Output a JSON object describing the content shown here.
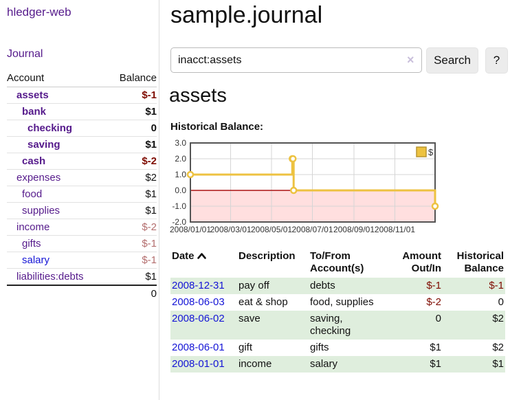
{
  "app": {
    "title": "hledger-web"
  },
  "sidebar": {
    "journal_label": "Journal",
    "accounts_header": {
      "account": "Account",
      "balance": "Balance"
    },
    "accounts": [
      {
        "name": "assets",
        "depth": 1,
        "balance": "$-1",
        "bold": true,
        "balance_style": "neg-strong"
      },
      {
        "name": "bank",
        "depth": 2,
        "balance": "$1",
        "bold": true,
        "balance_style": "pos"
      },
      {
        "name": "checking",
        "depth": 3,
        "balance": "0",
        "bold": true,
        "balance_style": "pos"
      },
      {
        "name": "saving",
        "depth": 3,
        "balance": "$1",
        "bold": true,
        "balance_style": "pos"
      },
      {
        "name": "cash",
        "depth": 2,
        "balance": "$-2",
        "bold": true,
        "balance_style": "neg-strong"
      },
      {
        "name": "expenses",
        "depth": 1,
        "balance": "$2",
        "bold": false,
        "balance_style": "pos"
      },
      {
        "name": "food",
        "depth": 2,
        "balance": "$1",
        "bold": false,
        "balance_style": "pos"
      },
      {
        "name": "supplies",
        "depth": 2,
        "balance": "$1",
        "bold": false,
        "balance_style": "pos"
      },
      {
        "name": "income",
        "depth": 1,
        "balance": "$-2",
        "bold": false,
        "balance_style": "neg-soft"
      },
      {
        "name": "gifts",
        "depth": 2,
        "balance": "$-1",
        "bold": false,
        "balance_style": "neg-soft"
      },
      {
        "name": "salary",
        "depth": 2,
        "balance": "$-1",
        "bold": false,
        "balance_style": "neg-soft",
        "link_style": "unvisited"
      },
      {
        "name": "liabilities:debts",
        "depth": 1,
        "balance": "$1",
        "bold": false,
        "balance_style": "pos"
      }
    ],
    "total": "0"
  },
  "header": {
    "title": "sample.journal"
  },
  "search": {
    "query": "inacct:assets",
    "clear_icon": "×",
    "button_label": "Search",
    "help_label": "?"
  },
  "account_page": {
    "heading": "assets",
    "chart_label": "Historical Balance:"
  },
  "chart_data": {
    "type": "line",
    "step": true,
    "title": "Historical Balance:",
    "series": [
      {
        "name": "$",
        "color": "#edc240",
        "points": [
          [
            "2008-01-01",
            1
          ],
          [
            "2008-06-01",
            2
          ],
          [
            "2008-06-02",
            2
          ],
          [
            "2008-06-03",
            0
          ],
          [
            "2008-12-31",
            -1
          ]
        ]
      }
    ],
    "xlim": [
      "2008-01-01",
      "2008-12-31"
    ],
    "ylim": [
      -2,
      3
    ],
    "x_tick_dates": [
      "2008-01-01",
      "2008-03-01",
      "2008-05-01",
      "2008-07-01",
      "2008-09-01",
      "2008-11-01"
    ],
    "x_tick_labels": [
      "2008/01/01",
      "2008/03/01",
      "2008/05/01",
      "2008/07/01",
      "2008/09/01",
      "2008/11/01"
    ],
    "y_ticks": [
      3,
      2,
      1,
      0,
      -1,
      -2
    ],
    "y_tick_labels": [
      "3.0",
      "2.0",
      "1.0",
      "0.0",
      "-1.0",
      "-2.0"
    ],
    "grid": true,
    "grid_color": "#d5d5d5",
    "border_color": "#545454",
    "negative_region_fill": "#ffdfdf",
    "zero_line_color": "#aa1111",
    "legend_position": "top-right",
    "legend_swatch_border": "#b89530"
  },
  "register": {
    "columns": [
      {
        "label": "Date",
        "sort": "asc"
      },
      {
        "label": "Description"
      },
      {
        "label": "To/From Account(s)"
      },
      {
        "label": "Amount Out/In",
        "align": "right"
      },
      {
        "label": "Historical Balance",
        "align": "right"
      }
    ],
    "rows": [
      {
        "date": "2008-12-31",
        "description": "pay off",
        "accounts": "debts",
        "amount": "$-1",
        "amount_neg": true,
        "balance": "$-1",
        "balance_neg": true,
        "striped": true
      },
      {
        "date": "2008-06-03",
        "description": "eat & shop",
        "accounts": "food, supplies",
        "amount": "$-2",
        "amount_neg": true,
        "balance": "0",
        "balance_neg": false,
        "striped": false
      },
      {
        "date": "2008-06-02",
        "description": "save",
        "accounts": "saving, checking",
        "amount": "0",
        "amount_neg": false,
        "balance": "$2",
        "balance_neg": false,
        "striped": true
      },
      {
        "date": "2008-06-01",
        "description": "gift",
        "accounts": "gifts",
        "amount": "$1",
        "amount_neg": false,
        "balance": "$2",
        "balance_neg": false,
        "striped": false
      },
      {
        "date": "2008-01-01",
        "description": "income",
        "accounts": "salary",
        "amount": "$1",
        "amount_neg": false,
        "balance": "$1",
        "balance_neg": false,
        "striped": true
      }
    ]
  }
}
